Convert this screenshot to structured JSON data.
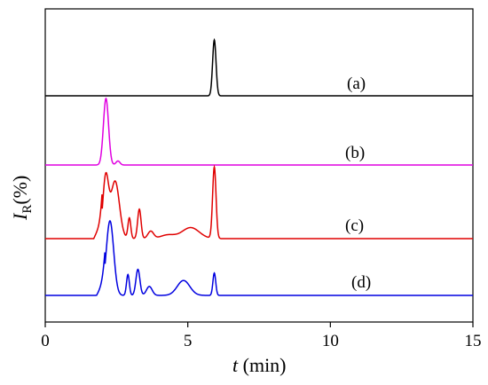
{
  "chart_data": {
    "type": "line",
    "title": "",
    "xlabel_italic": "t",
    "xlabel_rest": " (min)",
    "ylabel_italic": "I",
    "ylabel_sub": "R",
    "ylabel_rest": "(%)",
    "xlim": [
      0,
      15
    ],
    "xticks": [
      0,
      5,
      10,
      15
    ],
    "xtick_labels": [
      "0",
      "5",
      "10",
      "15"
    ],
    "y_tick_labels_shown": false,
    "grid": false,
    "legend": "none",
    "series": [
      {
        "name": "(a)",
        "color": "#000000",
        "peaks": [
          {
            "center": 5.93,
            "width": 0.06,
            "height": 1.0
          }
        ]
      },
      {
        "name": "(b)",
        "color": "#e000e0",
        "peaks": [
          {
            "center": 2.13,
            "width": 0.09,
            "height": 1.0
          },
          {
            "center": 2.55,
            "width": 0.07,
            "height": 0.06
          }
        ]
      },
      {
        "name": "(c)",
        "color": "#e00000",
        "peaks": [
          {
            "center": 2.12,
            "width": 0.1,
            "height": 0.82
          },
          {
            "center": 2.45,
            "width": 0.15,
            "height": 0.78
          },
          {
            "center": 2.95,
            "width": 0.05,
            "height": 0.28
          },
          {
            "center": 3.3,
            "width": 0.06,
            "height": 0.4
          },
          {
            "center": 3.7,
            "width": 0.1,
            "height": 0.1
          },
          {
            "center": 4.3,
            "width": 0.25,
            "height": 0.05
          },
          {
            "center": 5.1,
            "width": 0.3,
            "height": 0.15
          },
          {
            "center": 5.93,
            "width": 0.06,
            "height": 0.97
          }
        ]
      },
      {
        "name": "(d)",
        "color": "#0000e0",
        "peaks": [
          {
            "center": 2.27,
            "width": 0.13,
            "height": 1.0
          },
          {
            "center": 2.9,
            "width": 0.05,
            "height": 0.28
          },
          {
            "center": 3.25,
            "width": 0.07,
            "height": 0.35
          },
          {
            "center": 3.65,
            "width": 0.1,
            "height": 0.12
          },
          {
            "center": 4.85,
            "width": 0.22,
            "height": 0.2
          },
          {
            "center": 5.93,
            "width": 0.05,
            "height": 0.3
          }
        ]
      }
    ]
  }
}
